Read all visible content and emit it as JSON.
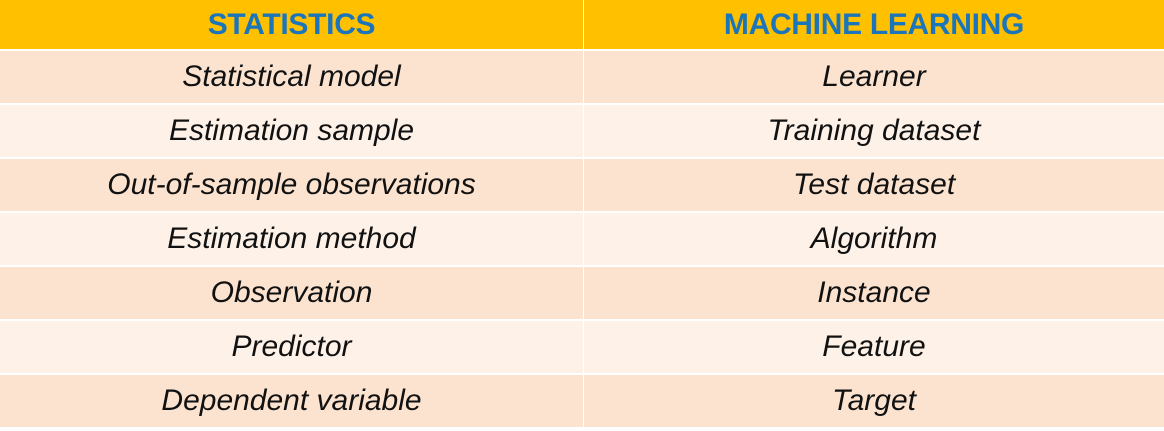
{
  "table": {
    "headers": [
      "STATISTICS",
      "MACHINE LEARNING"
    ],
    "rows": [
      [
        "Statistical model",
        "Learner"
      ],
      [
        "Estimation sample",
        "Training dataset"
      ],
      [
        "Out-of-sample observations",
        "Test dataset"
      ],
      [
        "Estimation method",
        "Algorithm"
      ],
      [
        "Observation",
        "Instance"
      ],
      [
        "Predictor",
        "Feature"
      ],
      [
        "Dependent variable",
        "Target"
      ]
    ]
  },
  "colors": {
    "header_background": "#FFC000",
    "header_text": "#1B75BB",
    "row_dark": "#FBE3D0",
    "row_light": "#FDF1E8",
    "body_text": "#111111"
  }
}
